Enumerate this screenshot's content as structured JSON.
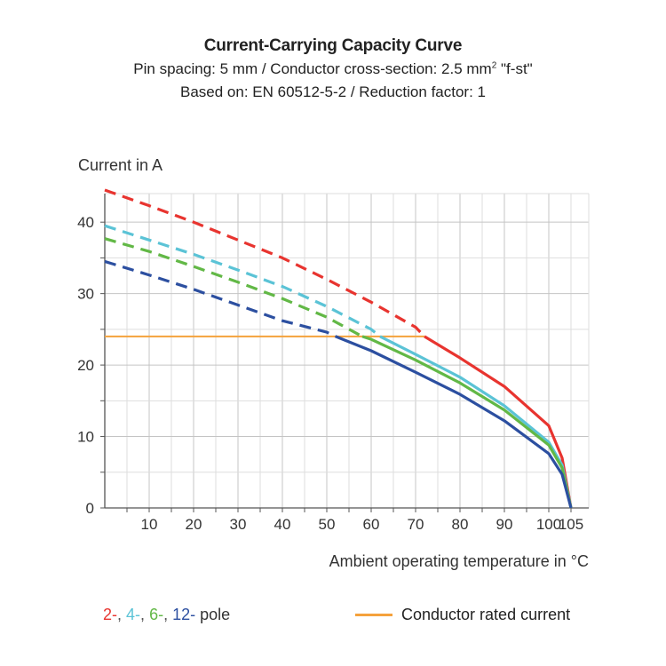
{
  "header": {
    "title": "Current-Carrying Capacity Curve",
    "subtitle_line1_prefix": "Pin spacing: 5 mm / Conductor cross-section: 2.5 mm",
    "subtitle_line1_sup": "2",
    "subtitle_line1_suffix": " \"f-st\"",
    "subtitle_line2": "Based on: EN 60512-5-2 / Reduction factor: 1"
  },
  "legend": {
    "poles": [
      {
        "label": "2-",
        "color": "#e8342f"
      },
      {
        "label": ", ",
        "color": "#555555"
      },
      {
        "label": "4-",
        "color": "#5bc3d6"
      },
      {
        "label": ", ",
        "color": "#555555"
      },
      {
        "label": "6-",
        "color": "#62b846"
      },
      {
        "label": ", ",
        "color": "#555555"
      },
      {
        "label": "12-",
        "color": "#2c4fa0"
      },
      {
        "label": " pole",
        "color": "#333333"
      }
    ],
    "rated_label": "Conductor rated current",
    "rated_color": "#f5a23c"
  },
  "chart_data": {
    "type": "line",
    "xlabel": "Ambient operating temperature in °C",
    "ylabel": "Current in A",
    "xlim": [
      0,
      109
    ],
    "ylim": [
      0,
      44
    ],
    "x_ticks": [
      10,
      20,
      30,
      40,
      50,
      60,
      70,
      80,
      90,
      100,
      105
    ],
    "y_ticks": [
      0,
      10,
      20,
      30,
      40
    ],
    "grid": true,
    "rated_current": 24,
    "series": [
      {
        "name": "2-",
        "color": "#e8342f",
        "x": [
          0,
          10,
          20,
          30,
          40,
          50,
          60,
          70,
          72,
          80,
          90,
          100,
          103,
          105
        ],
        "y": [
          44.5,
          42.3,
          40,
          37.5,
          35,
          32,
          28.8,
          25.3,
          24,
          21,
          17,
          11.5,
          7,
          0
        ]
      },
      {
        "name": "4-",
        "color": "#5bc3d6",
        "x": [
          0,
          10,
          20,
          30,
          40,
          50,
          60,
          62,
          70,
          80,
          90,
          100,
          103,
          105
        ],
        "y": [
          39.5,
          37.5,
          35.5,
          33.3,
          31,
          28.2,
          25,
          24,
          21.5,
          18.3,
          14.3,
          9.2,
          6,
          0
        ]
      },
      {
        "name": "6-",
        "color": "#62b846",
        "x": [
          0,
          10,
          20,
          30,
          40,
          50,
          58,
          60,
          70,
          80,
          90,
          100,
          103,
          105
        ],
        "y": [
          37.7,
          35.9,
          33.8,
          31.6,
          29.3,
          26.7,
          24,
          23.6,
          20.7,
          17.5,
          13.7,
          8.8,
          5.6,
          0
        ]
      },
      {
        "name": "12-",
        "color": "#2c4fa0",
        "x": [
          0,
          10,
          20,
          30,
          40,
          50,
          52,
          60,
          70,
          80,
          90,
          100,
          103,
          105
        ],
        "y": [
          34.5,
          32.6,
          30.6,
          28.4,
          26.2,
          24.6,
          24,
          22,
          19,
          15.9,
          12.2,
          7.6,
          4.7,
          0
        ]
      }
    ]
  }
}
